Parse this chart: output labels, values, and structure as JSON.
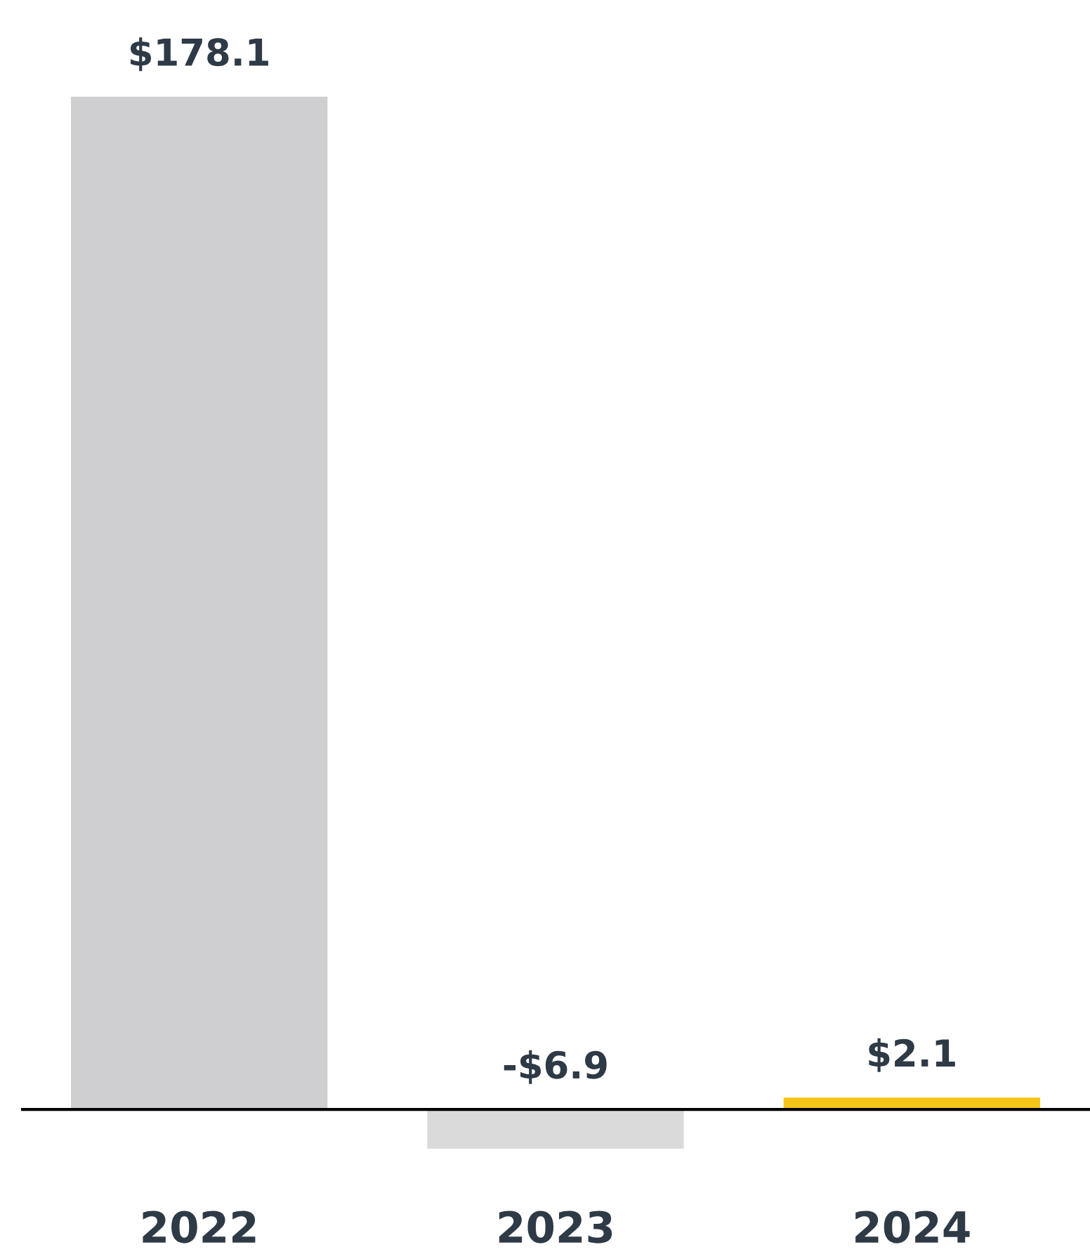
{
  "chart_data": {
    "type": "bar",
    "categories": [
      "2022",
      "2023",
      "2024"
    ],
    "values": [
      178.1,
      -6.9,
      2.1
    ],
    "colors": [
      "#cfcfd1",
      "#dadada",
      "#f5c518"
    ],
    "value_labels": [
      "$178.1",
      "-$6.9",
      "$2.1"
    ],
    "tick_labels": "x",
    "grid": false
  }
}
